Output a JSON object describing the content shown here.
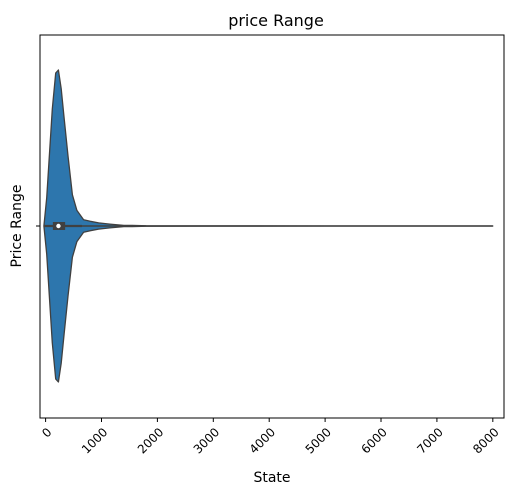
{
  "chart_data": {
    "type": "violin",
    "title": "price Range",
    "xlabel": "State",
    "ylabel": "Price Range",
    "xlim": [
      -100,
      8200
    ],
    "x_ticks": [
      0,
      1000,
      2000,
      3000,
      4000,
      5000,
      6000,
      7000,
      8000
    ],
    "x_tick_labels": [
      "0",
      "1000",
      "2000",
      "3000",
      "4000",
      "5000",
      "6000",
      "7000",
      "8000"
    ],
    "y_ticks": [
      ""
    ],
    "orientation": "horizontal",
    "color": "#2d76ad",
    "edge_color": "#404040",
    "density_profile": [
      {
        "x": -30,
        "density": 0.0
      },
      {
        "x": 20,
        "density": 0.18
      },
      {
        "x": 120,
        "density": 0.75
      },
      {
        "x": 180,
        "density": 0.98
      },
      {
        "x": 230,
        "density": 1.0
      },
      {
        "x": 280,
        "density": 0.88
      },
      {
        "x": 330,
        "density": 0.7
      },
      {
        "x": 400,
        "density": 0.45
      },
      {
        "x": 480,
        "density": 0.2
      },
      {
        "x": 560,
        "density": 0.1
      },
      {
        "x": 680,
        "density": 0.04
      },
      {
        "x": 800,
        "density": 0.03
      },
      {
        "x": 950,
        "density": 0.02
      },
      {
        "x": 1150,
        "density": 0.012
      },
      {
        "x": 1400,
        "density": 0.004
      },
      {
        "x": 1550,
        "density": 0.004
      },
      {
        "x": 1800,
        "density": 0.001
      },
      {
        "x": 3000,
        "density": 0.0005
      },
      {
        "x": 5000,
        "density": 0.0003
      },
      {
        "x": 8000,
        "density": 0.0
      }
    ],
    "box": {
      "q1": 130,
      "median": 230,
      "q3": 350,
      "whisker_low": -30,
      "whisker_high": 650
    },
    "range": {
      "min": -30,
      "max": 8000
    }
  }
}
